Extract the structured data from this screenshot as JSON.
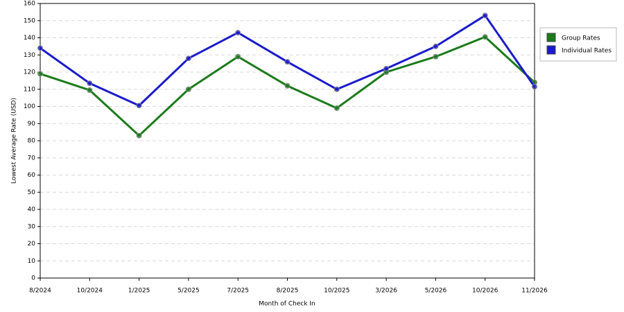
{
  "chart_data": {
    "type": "line",
    "x_label": "Month of Check In",
    "y_label": "Lowest Average Rate (USD)",
    "categories": [
      "8/2024",
      "10/2024",
      "1/2025",
      "5/2025",
      "7/2025",
      "8/2025",
      "10/2025",
      "3/2026",
      "5/2026",
      "10/2026",
      "11/2026"
    ],
    "series": [
      {
        "name": "Group Rates",
        "color": "#1a7a1a",
        "values": [
          119,
          109.5,
          83,
          110,
          129,
          112,
          99,
          120,
          129,
          140.5,
          114
        ]
      },
      {
        "name": "Individual Rates",
        "color": "#1a1acc",
        "values": [
          134,
          113.5,
          100.5,
          128,
          143,
          126,
          110,
          122,
          135,
          153,
          111.5
        ]
      }
    ],
    "ylim": [
      0,
      160
    ],
    "yticks": [
      0,
      10,
      20,
      30,
      40,
      50,
      60,
      70,
      80,
      90,
      100,
      110,
      120,
      130,
      140,
      150,
      160
    ],
    "grid": true,
    "legend": "right"
  }
}
